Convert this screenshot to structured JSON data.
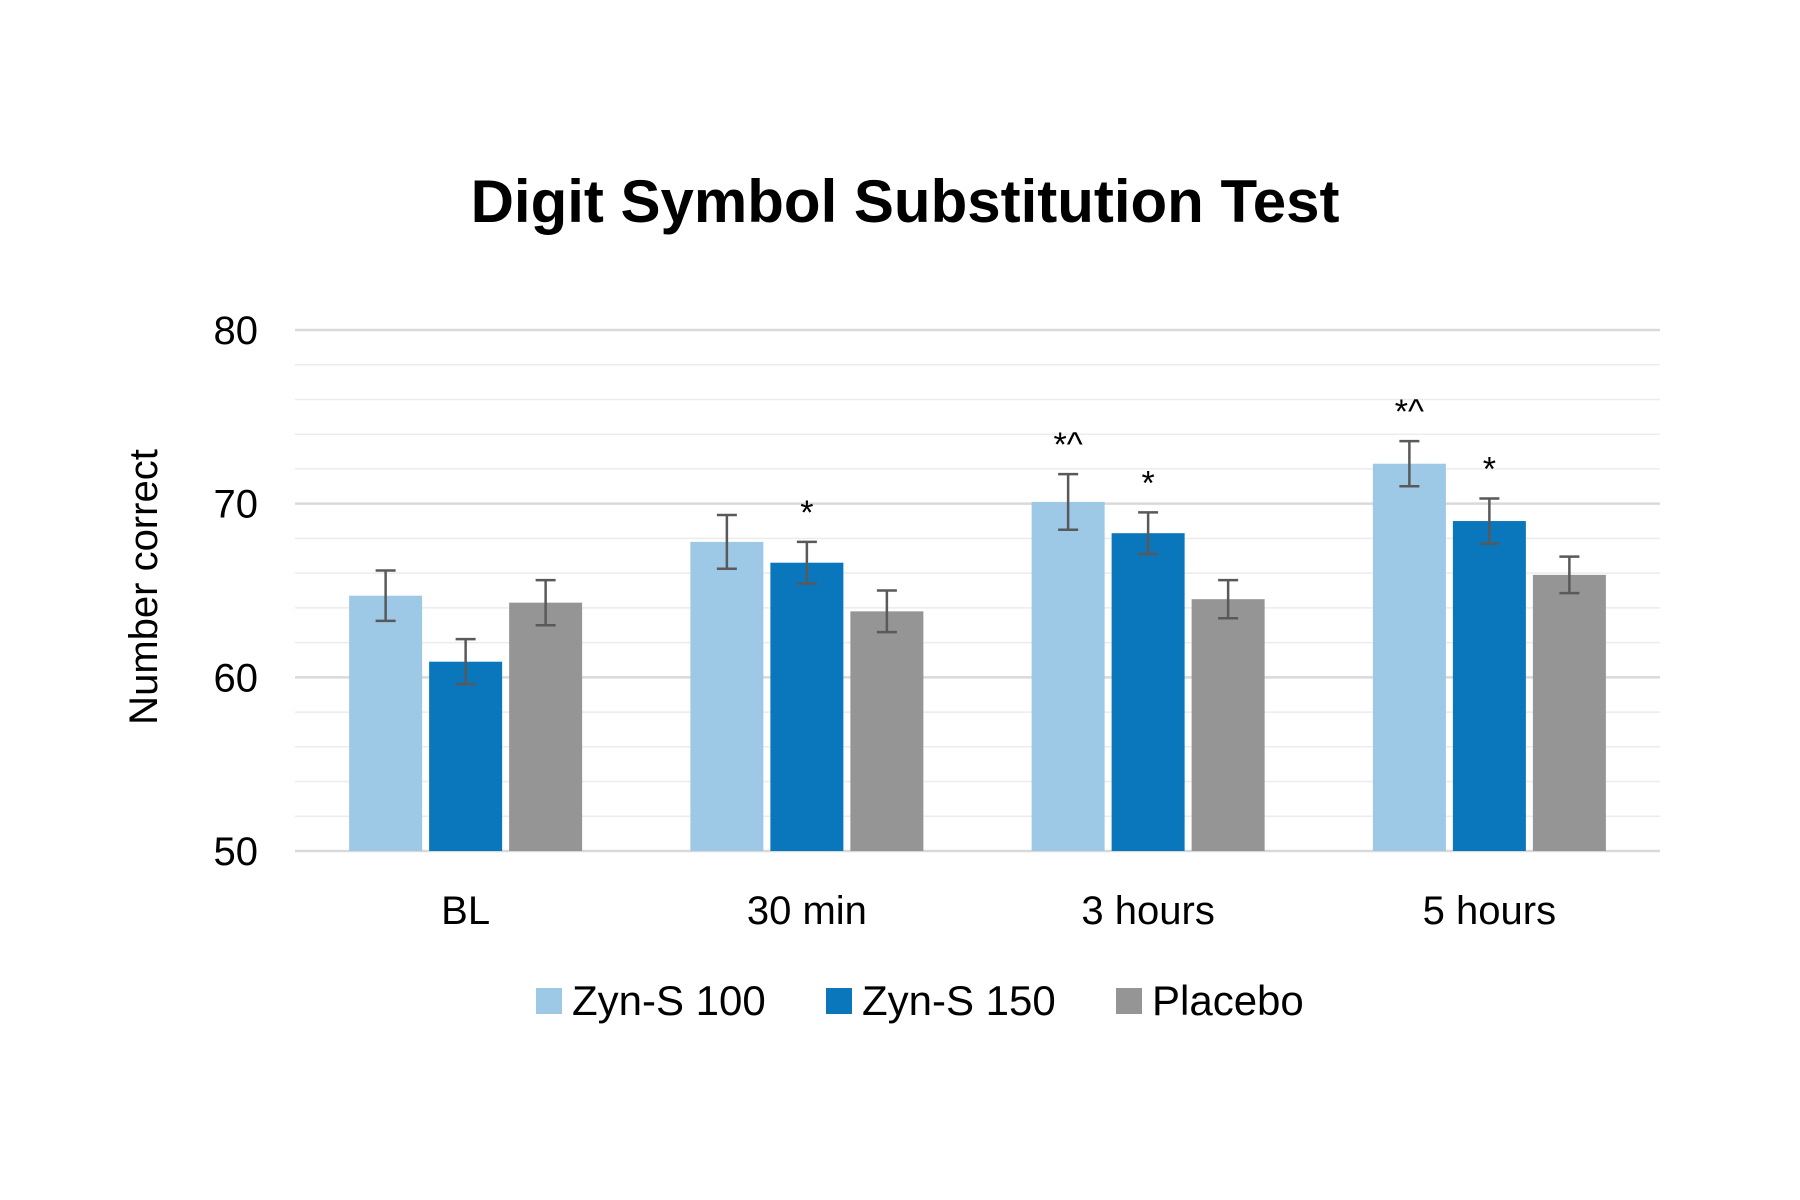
{
  "chart_data": {
    "type": "bar",
    "title": "Digit Symbol Substitution Test",
    "xlabel": "",
    "ylabel": "Number correct",
    "ylim": [
      50,
      80
    ],
    "yticks": [
      50,
      60,
      70,
      80
    ],
    "grid": true,
    "legend_position": "bottom",
    "categories": [
      "BL",
      "30 min",
      "3 hours",
      "5 hours"
    ],
    "series": [
      {
        "name": "Zyn-S 100",
        "color": "#9DC8E6",
        "values": [
          64.7,
          67.8,
          70.1,
          72.3
        ],
        "error": [
          1.45,
          1.55,
          1.6,
          1.3
        ],
        "annotations": [
          "",
          "",
          "*^",
          "*^"
        ]
      },
      {
        "name": "Zyn-S 150",
        "color": "#0A77BD",
        "values": [
          60.9,
          66.6,
          68.3,
          69.0
        ],
        "error": [
          1.3,
          1.2,
          1.2,
          1.3
        ],
        "annotations": [
          "",
          "*",
          "*",
          "*"
        ]
      },
      {
        "name": "Placebo",
        "color": "#959595",
        "values": [
          64.3,
          63.8,
          64.5,
          65.9
        ],
        "error": [
          1.3,
          1.2,
          1.1,
          1.05
        ],
        "annotations": [
          "",
          "",
          "",
          ""
        ]
      }
    ]
  }
}
